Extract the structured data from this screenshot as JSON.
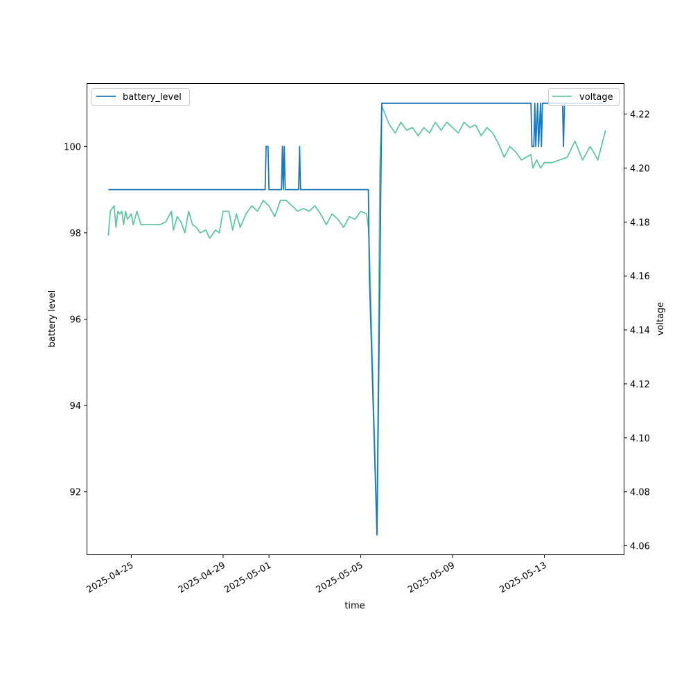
{
  "chart_data": {
    "type": "line",
    "xlabel": "time",
    "ylabel": "battery level",
    "y2label": "voltage",
    "x_ticks": [
      "2025-04-25",
      "2025-04-29",
      "2025-05-01",
      "2025-05-05",
      "2025-05-09",
      "2025-05-13"
    ],
    "y_ticks": [
      92,
      94,
      96,
      98,
      100
    ],
    "y2_ticks": [
      4.06,
      4.08,
      4.1,
      4.12,
      4.14,
      4.16,
      4.18,
      4.2,
      4.22
    ],
    "xlim": [
      "2025-04-23T02:00",
      "2025-05-16T11:00"
    ],
    "ylim": [
      90.55,
      101.45
    ],
    "y2lim": [
      4.0568,
      4.2312
    ],
    "legend_left": "top-left",
    "legend_right": "top-right",
    "grid": false,
    "series": [
      {
        "name": "battery_level",
        "axis": "left",
        "color": "#1f77b4",
        "points": [
          [
            "2025-04-24T00:00",
            99
          ],
          [
            "2025-04-30T20:00",
            99
          ],
          [
            "2025-04-30T21:00",
            100
          ],
          [
            "2025-04-30T23:00",
            100
          ],
          [
            "2025-05-01T00:00",
            99
          ],
          [
            "2025-05-01T13:00",
            99
          ],
          [
            "2025-05-01T14:00",
            100
          ],
          [
            "2025-05-01T15:00",
            99
          ],
          [
            "2025-05-01T16:00",
            100
          ],
          [
            "2025-05-01T17:00",
            99
          ],
          [
            "2025-05-02T07:00",
            99
          ],
          [
            "2025-05-02T08:00",
            100
          ],
          [
            "2025-05-02T09:00",
            99
          ],
          [
            "2025-05-05T08:00",
            99
          ],
          [
            "2025-05-05T09:00",
            97
          ],
          [
            "2025-05-05T17:00",
            91
          ],
          [
            "2025-05-05T22:00",
            101
          ],
          [
            "2025-05-12T10:00",
            101
          ],
          [
            "2025-05-12T11:00",
            100
          ],
          [
            "2025-05-12T13:00",
            100
          ],
          [
            "2025-05-12T14:00",
            101
          ],
          [
            "2025-05-12T15:00",
            100
          ],
          [
            "2025-05-12T17:00",
            101
          ],
          [
            "2025-05-12T18:00",
            100
          ],
          [
            "2025-05-12T20:00",
            101
          ],
          [
            "2025-05-12T21:00",
            100
          ],
          [
            "2025-05-12T22:00",
            101
          ],
          [
            "2025-05-13T19:00",
            101
          ],
          [
            "2025-05-13T20:00",
            100
          ],
          [
            "2025-05-13T21:00",
            101
          ],
          [
            "2025-05-15T16:00",
            101
          ]
        ]
      },
      {
        "name": "voltage",
        "axis": "right",
        "color": "#66c2a5",
        "points": [
          [
            "2025-04-24T00:00",
            4.175
          ],
          [
            "2025-04-24T02:00",
            4.184
          ],
          [
            "2025-04-24T06:00",
            4.186
          ],
          [
            "2025-04-24T08:00",
            4.178
          ],
          [
            "2025-04-24T10:00",
            4.184
          ],
          [
            "2025-04-24T12:00",
            4.183
          ],
          [
            "2025-04-24T14:00",
            4.184
          ],
          [
            "2025-04-24T16:00",
            4.179
          ],
          [
            "2025-04-24T18:00",
            4.184
          ],
          [
            "2025-04-24T20:00",
            4.181
          ],
          [
            "2025-04-25T00:00",
            4.183
          ],
          [
            "2025-04-25T02:00",
            4.179
          ],
          [
            "2025-04-25T06:00",
            4.184
          ],
          [
            "2025-04-25T10:00",
            4.179
          ],
          [
            "2025-04-25T18:00",
            4.179
          ],
          [
            "2025-04-26T06:00",
            4.179
          ],
          [
            "2025-04-26T12:00",
            4.18
          ],
          [
            "2025-04-26T18:00",
            4.184
          ],
          [
            "2025-04-26T20:00",
            4.177
          ],
          [
            "2025-04-27T00:00",
            4.182
          ],
          [
            "2025-04-27T04:00",
            4.18
          ],
          [
            "2025-04-27T08:00",
            4.176
          ],
          [
            "2025-04-27T12:00",
            4.184
          ],
          [
            "2025-04-27T16:00",
            4.179
          ],
          [
            "2025-04-27T20:00",
            4.178
          ],
          [
            "2025-04-28T00:00",
            4.176
          ],
          [
            "2025-04-28T06:00",
            4.177
          ],
          [
            "2025-04-28T10:00",
            4.174
          ],
          [
            "2025-04-28T16:00",
            4.177
          ],
          [
            "2025-04-28T20:00",
            4.176
          ],
          [
            "2025-04-29T00:00",
            4.184
          ],
          [
            "2025-04-29T06:00",
            4.184
          ],
          [
            "2025-04-29T10:00",
            4.177
          ],
          [
            "2025-04-29T14:00",
            4.183
          ],
          [
            "2025-04-29T18:00",
            4.178
          ],
          [
            "2025-04-30T00:00",
            4.183
          ],
          [
            "2025-04-30T06:00",
            4.186
          ],
          [
            "2025-04-30T12:00",
            4.184
          ],
          [
            "2025-04-30T18:00",
            4.188
          ],
          [
            "2025-05-01T00:00",
            4.186
          ],
          [
            "2025-05-01T06:00",
            4.182
          ],
          [
            "2025-05-01T12:00",
            4.188
          ],
          [
            "2025-05-01T18:00",
            4.188
          ],
          [
            "2025-05-02T00:00",
            4.186
          ],
          [
            "2025-05-02T06:00",
            4.184
          ],
          [
            "2025-05-02T12:00",
            4.185
          ],
          [
            "2025-05-02T18:00",
            4.184
          ],
          [
            "2025-05-03T00:00",
            4.186
          ],
          [
            "2025-05-03T06:00",
            4.183
          ],
          [
            "2025-05-03T12:00",
            4.179
          ],
          [
            "2025-05-03T18:00",
            4.183
          ],
          [
            "2025-05-04T00:00",
            4.181
          ],
          [
            "2025-05-04T06:00",
            4.178
          ],
          [
            "2025-05-04T12:00",
            4.182
          ],
          [
            "2025-05-04T18:00",
            4.181
          ],
          [
            "2025-05-05T00:00",
            4.184
          ],
          [
            "2025-05-05T06:00",
            4.183
          ],
          [
            "2025-05-05T08:00",
            4.178
          ],
          [
            "2025-05-05T09:00",
            4.17
          ],
          [
            "2025-05-05T17:00",
            4.065
          ],
          [
            "2025-05-05T20:00",
            4.2
          ],
          [
            "2025-05-05T22:00",
            4.223
          ],
          [
            "2025-05-06T06:00",
            4.216
          ],
          [
            "2025-05-06T12:00",
            4.213
          ],
          [
            "2025-05-06T18:00",
            4.217
          ],
          [
            "2025-05-07T00:00",
            4.214
          ],
          [
            "2025-05-07T06:00",
            4.215
          ],
          [
            "2025-05-07T12:00",
            4.212
          ],
          [
            "2025-05-07T18:00",
            4.215
          ],
          [
            "2025-05-08T00:00",
            4.213
          ],
          [
            "2025-05-08T06:00",
            4.217
          ],
          [
            "2025-05-08T12:00",
            4.214
          ],
          [
            "2025-05-08T18:00",
            4.217
          ],
          [
            "2025-05-09T00:00",
            4.215
          ],
          [
            "2025-05-09T06:00",
            4.213
          ],
          [
            "2025-05-09T12:00",
            4.217
          ],
          [
            "2025-05-09T18:00",
            4.215
          ],
          [
            "2025-05-10T00:00",
            4.216
          ],
          [
            "2025-05-10T06:00",
            4.212
          ],
          [
            "2025-05-10T12:00",
            4.215
          ],
          [
            "2025-05-10T18:00",
            4.213
          ],
          [
            "2025-05-11T00:00",
            4.209
          ],
          [
            "2025-05-11T06:00",
            4.204
          ],
          [
            "2025-05-11T12:00",
            4.208
          ],
          [
            "2025-05-11T18:00",
            4.206
          ],
          [
            "2025-05-12T00:00",
            4.203
          ],
          [
            "2025-05-12T10:00",
            4.205
          ],
          [
            "2025-05-12T12:00",
            4.2
          ],
          [
            "2025-05-12T16:00",
            4.203
          ],
          [
            "2025-05-12T20:00",
            4.2
          ],
          [
            "2025-05-13T00:00",
            4.202
          ],
          [
            "2025-05-13T08:00",
            4.202
          ],
          [
            "2025-05-13T16:00",
            4.203
          ],
          [
            "2025-05-14T00:00",
            4.204
          ],
          [
            "2025-05-14T08:00",
            4.21
          ],
          [
            "2025-05-14T16:00",
            4.203
          ],
          [
            "2025-05-15T00:00",
            4.208
          ],
          [
            "2025-05-15T08:00",
            4.203
          ],
          [
            "2025-05-15T16:00",
            4.214
          ]
        ]
      }
    ]
  }
}
